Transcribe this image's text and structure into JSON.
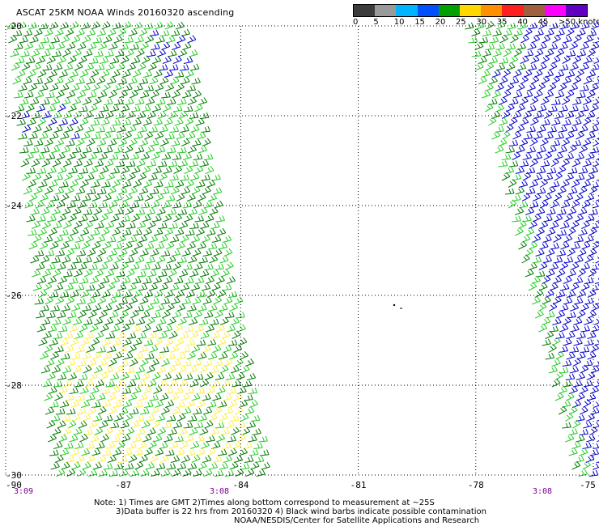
{
  "title": "ASCAT 25KM NOAA Winds 20160320 ascending",
  "legend": {
    "labels": [
      "0",
      "5",
      "10",
      "15",
      "20",
      "25",
      "30",
      "35",
      "40",
      "45",
      ">50 knots"
    ],
    "colors": [
      "#3c3c3c",
      "#9a9a9a",
      "#00b4ff",
      "#0050ff",
      "#00a000",
      "#ffd800",
      "#ff9000",
      "#ff2020",
      "#a06040",
      "#ff00ff",
      "#6000c0"
    ]
  },
  "map": {
    "lat_labels": [
      "-20",
      "-22",
      "-24",
      "-26",
      "-28",
      "-30"
    ],
    "lon_labels": [
      "-90",
      "-87",
      "-84",
      "-81",
      "-78",
      "-75"
    ],
    "time_labels": [
      "3:09",
      "3:08",
      "3:08"
    ]
  },
  "notes": {
    "line1": "Note: 1) Times are GMT 2)Times along bottom correspond to measurement at ~25S",
    "line2": "3)Data buffer is 22 hrs from 20160320 4) Black wind barbs indicate possible contamination",
    "line3": "NOAA/NESDIS/Center for Satellite Applications and Research"
  },
  "colors": {
    "green_dark": "#007a00",
    "green_light": "#22cc22",
    "blue": "#0000cc",
    "yellow": "#ffee44",
    "grid": "#000000",
    "time": "#7a0090"
  }
}
